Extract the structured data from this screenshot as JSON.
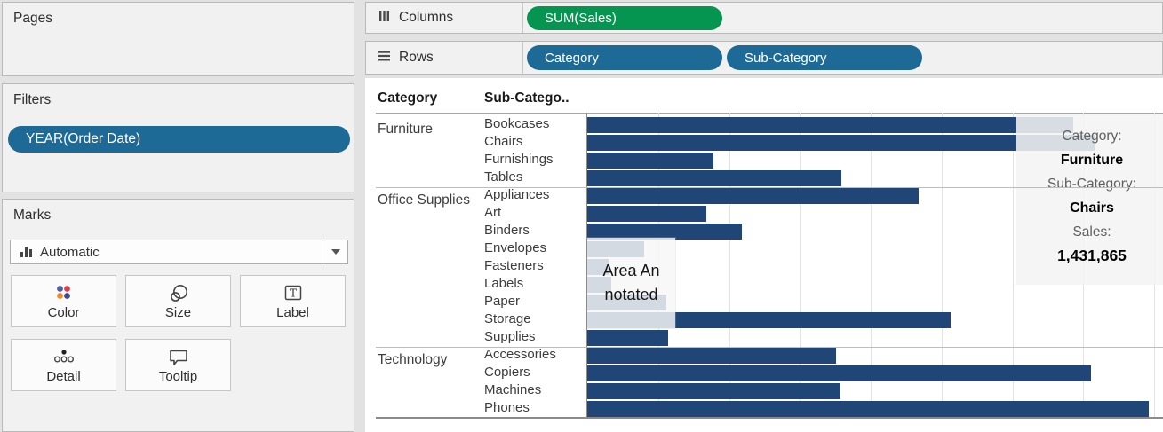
{
  "colors": {
    "dimension_pill": "#1d6a96",
    "measure_pill": "#069551",
    "bar": "#1f4677"
  },
  "left_panel": {
    "pages_title": "Pages",
    "filters_title": "Filters",
    "filter_pills": [
      {
        "label": "YEAR(Order Date)"
      }
    ],
    "marks_title": "Marks",
    "mark_type_selector": {
      "value": "Automatic"
    },
    "mark_buttons": [
      {
        "label": "Color"
      },
      {
        "label": "Size"
      },
      {
        "label": "Label"
      },
      {
        "label": "Detail"
      },
      {
        "label": "Tooltip"
      }
    ]
  },
  "shelves": {
    "columns": {
      "label": "Columns",
      "pills": [
        {
          "label": "SUM(Sales)",
          "kind": "measure"
        }
      ]
    },
    "rows": {
      "label": "Rows",
      "pills": [
        {
          "label": "Category",
          "kind": "dimension"
        },
        {
          "label": "Sub-Category",
          "kind": "dimension"
        }
      ]
    }
  },
  "chart_data": {
    "type": "bar",
    "orientation": "horizontal",
    "measure": "SUM(Sales)",
    "column_headers": [
      "Category",
      "Sub-Catego.."
    ],
    "value_axis_max": 1625000,
    "gridline_interval": 200000,
    "gridlines_visible": true,
    "value_axis_labels_visible": false,
    "groups": [
      {
        "category": "Furniture",
        "rows": [
          {
            "label": "Bookcases",
            "value": 1371000
          },
          {
            "label": "Chairs",
            "value": 1431865
          },
          {
            "label": "Furnishings",
            "value": 356000
          },
          {
            "label": "Tables",
            "value": 717000
          }
        ]
      },
      {
        "category": "Office Supplies",
        "rows": [
          {
            "label": "Appliances",
            "value": 935000
          },
          {
            "label": "Art",
            "value": 336000
          },
          {
            "label": "Binders",
            "value": 436000
          },
          {
            "label": "Envelopes",
            "value": 160000
          },
          {
            "label": "Fasteners",
            "value": 60000
          },
          {
            "label": "Labels",
            "value": 68000
          },
          {
            "label": "Paper",
            "value": 223000
          },
          {
            "label": "Storage",
            "value": 1026000
          },
          {
            "label": "Supplies",
            "value": 228000
          }
        ]
      },
      {
        "category": "Technology",
        "rows": [
          {
            "label": "Accessories",
            "value": 702000
          },
          {
            "label": "Copiers",
            "value": 1422000
          },
          {
            "label": "Machines",
            "value": 715000
          },
          {
            "label": "Phones",
            "value": 1585000
          }
        ]
      }
    ]
  },
  "annotation": {
    "text": "Area Annotated",
    "line1": "Area An",
    "line2": "notated"
  },
  "tooltip": {
    "hovered_mark": "Chairs",
    "fields": [
      {
        "label": "Category:",
        "value": "Furniture"
      },
      {
        "label": "Sub-Category:",
        "value": "Chairs"
      },
      {
        "label": "Sales:",
        "value": "1,431,865"
      }
    ]
  }
}
